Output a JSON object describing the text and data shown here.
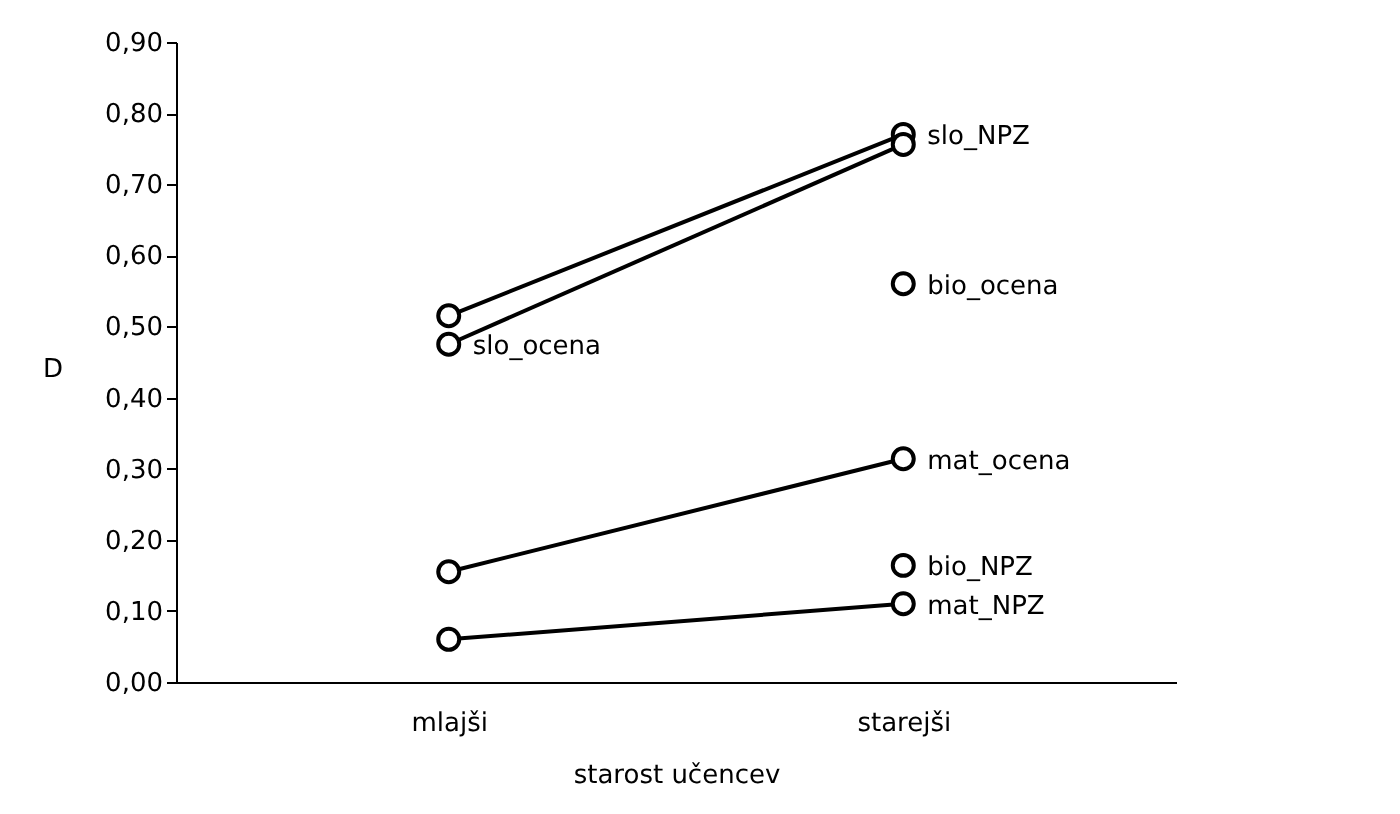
{
  "chart_data": {
    "type": "line",
    "xlabel": "starost učencev",
    "ylabel": "D",
    "categories": [
      "mlajši",
      "starejši"
    ],
    "series": [
      {
        "name": "slo_NPZ",
        "color": "#000000",
        "values": [
          0.515,
          0.77
        ]
      },
      {
        "name": "slo_ocena",
        "color": "#000000",
        "values": [
          0.475,
          0.756
        ]
      },
      {
        "name": "bio_ocena",
        "color": "#000000",
        "values": [
          null,
          0.56
        ]
      },
      {
        "name": "mat_ocena",
        "color": "#000000",
        "values": [
          0.155,
          0.314
        ]
      },
      {
        "name": "bio_NPZ",
        "color": "#000000",
        "values": [
          null,
          0.164
        ]
      },
      {
        "name": "mat_NPZ",
        "color": "#000000",
        "values": [
          0.06,
          0.11
        ]
      }
    ],
    "ylim": [
      0,
      0.9
    ],
    "yticks": [
      {
        "value": 0,
        "label": "0,00"
      },
      {
        "value": 0.1,
        "label": "0,10"
      },
      {
        "value": 0.2,
        "label": "0,20"
      },
      {
        "value": 0.3,
        "label": "0,30"
      },
      {
        "value": 0.4,
        "label": "0,40"
      },
      {
        "value": 0.5,
        "label": "0,50"
      },
      {
        "value": 0.6,
        "label": "0,60"
      },
      {
        "value": 0.7,
        "label": "0,70"
      },
      {
        "value": 0.8,
        "label": "0,80"
      },
      {
        "value": 0.9,
        "label": "0,90"
      }
    ],
    "grid": false,
    "legend": false,
    "marker": "circle",
    "line_style": "solid"
  }
}
